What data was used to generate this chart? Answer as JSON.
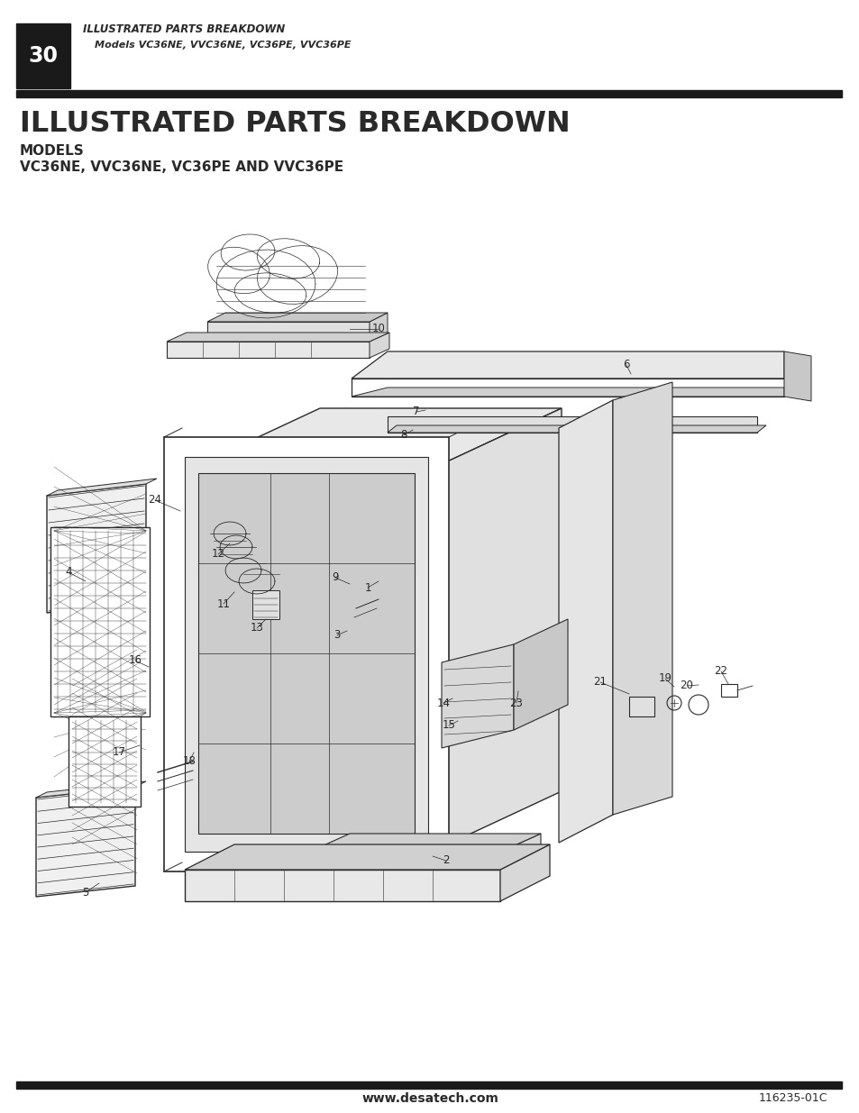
{
  "page_number": "30",
  "header_title": "ILLUSTRATED PARTS BREAKDOWN",
  "header_subtitle": "Models VC36NE, VVC36NE, VC36PE, VVC36PE",
  "main_title": "ILLUSTRATED PARTS BREAKDOWN",
  "models_label": "MODELS",
  "models_text": "VC36NE, VVC36NE, VC36PE AND VVC36PE",
  "footer_website": "www.desatech.com",
  "footer_code": "116235-01C",
  "bg_color": "#ffffff",
  "header_bg": "#1a1a1a",
  "title_color": "#1a1a1a",
  "line_color": "#2a2a2a"
}
